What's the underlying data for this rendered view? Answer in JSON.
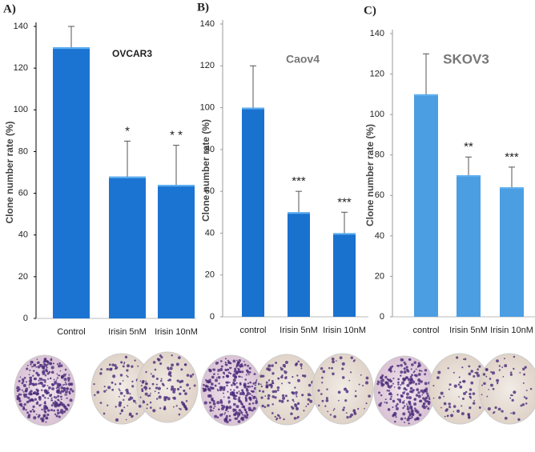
{
  "chart_data": [
    {
      "type": "bar",
      "panel": "A)",
      "title": "OVCAR3",
      "y_label": "Clone number rate (%)",
      "categories": [
        "Control",
        "Irisin 5nM",
        "Irisin 10nM"
      ],
      "values": [
        130,
        68,
        64
      ],
      "errors": [
        10,
        17,
        19
      ],
      "annotations": [
        null,
        "*",
        "* *"
      ],
      "color": "#1c74d2",
      "ylim": [
        0,
        140
      ],
      "yticks": [
        0,
        20,
        40,
        60,
        80,
        100,
        120,
        140
      ]
    },
    {
      "type": "bar",
      "panel": "B)",
      "title": "Caov4",
      "y_label": "Clone number rate (%)",
      "categories": [
        "control",
        "Irisin 5nM",
        "Irisin 10nM"
      ],
      "values": [
        100,
        50,
        40
      ],
      "errors": [
        20,
        10,
        10
      ],
      "annotations": [
        null,
        "***",
        "***"
      ],
      "color": "#1a72cf",
      "ylim": [
        0,
        140
      ],
      "yticks": [
        0,
        20,
        40,
        60,
        80,
        100,
        120,
        140
      ]
    },
    {
      "type": "bar",
      "panel": "C)",
      "title": "SKOV3",
      "y_label": "Clone number rate (%)",
      "categories": [
        "control",
        "Irisin 5nM",
        "Irisin 10nM"
      ],
      "values": [
        110,
        70,
        64
      ],
      "errors": [
        20,
        9,
        10
      ],
      "annotations": [
        null,
        "**",
        "***"
      ],
      "color": "#4b9ee2",
      "ylim": [
        0,
        140
      ],
      "yticks": [
        0,
        20,
        40,
        60,
        80,
        100,
        120,
        140
      ]
    }
  ]
}
